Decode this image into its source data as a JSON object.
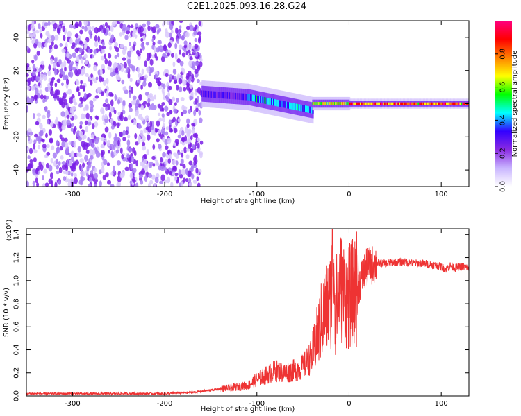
{
  "title": "C2E1.2025.093.16.28.G24",
  "chart_data": [
    {
      "type": "heatmap",
      "xlabel": "Height of straight line (km)",
      "ylabel": "Frequency (Hz)",
      "xlim": [
        -350,
        130
      ],
      "ylim": [
        -50,
        50
      ],
      "xticks": [
        -300,
        -200,
        -100,
        0,
        100
      ],
      "yticks": [
        -40,
        -20,
        0,
        20,
        40
      ],
      "grid": false,
      "colorbar": {
        "label": "Normalized spectral amplitude",
        "range": [
          0,
          1
        ],
        "ticks": [
          "0.0",
          "0.2",
          "0.4",
          "0.6",
          "0.8"
        ],
        "colors": [
          "#ffffff",
          "#c9b5ff",
          "#8a2be2",
          "#3300ff",
          "#00ffff",
          "#00ff00",
          "#ffff00",
          "#ff8000",
          "#ff0000",
          "#ff0080"
        ]
      },
      "regions": [
        {
          "x_range": [
            -350,
            -160
          ],
          "description_value": "broadband noise",
          "amplitude": 0.12,
          "freq_range": [
            -50,
            50
          ]
        },
        {
          "x_range": [
            -160,
            -110
          ],
          "amplitude": 0.3,
          "center_freq_start": 6,
          "center_freq_end": 4,
          "width_hz": 8
        },
        {
          "x_range": [
            -110,
            -40
          ],
          "amplitude": 0.45,
          "center_freq_start": 4,
          "center_freq_end": -4,
          "width_hz": 8
        },
        {
          "x_range": [
            -40,
            0
          ],
          "amplitude": 0.7,
          "center_freq_start": 0,
          "center_freq_end": 0,
          "width_hz": 4
        },
        {
          "x_range": [
            0,
            130
          ],
          "amplitude": 0.85,
          "center_freq_start": 0,
          "center_freq_end": 0,
          "width_hz": 3
        }
      ]
    },
    {
      "type": "line",
      "xlabel": "Height of straight line (km)",
      "ylabel": "SNR (10 * v/v)",
      "y_multiplier": "(x10⁴)",
      "xlim": [
        -350,
        130
      ],
      "ylim": [
        0,
        1.45
      ],
      "xticks": [
        -300,
        -200,
        -100,
        0,
        100
      ],
      "yticks": [
        "0.0",
        "0.2",
        "0.4",
        "0.6",
        "0.8",
        "1.0",
        "1.2",
        "1.4"
      ],
      "series_color": "#ee3333",
      "series": [
        {
          "x": [
            -350,
            -300,
            -250,
            -200,
            -170,
            -150,
            -130,
            -110,
            -100,
            -90,
            -80,
            -70,
            -60,
            -50,
            -40,
            -35,
            -30,
            -25,
            -20,
            -17,
            -15,
            -10,
            -5,
            0,
            5,
            10,
            15,
            20,
            30,
            40,
            50,
            60,
            70,
            80,
            90,
            100,
            105,
            110,
            115,
            120,
            125,
            130
          ],
          "y": [
            0.02,
            0.02,
            0.02,
            0.02,
            0.03,
            0.05,
            0.07,
            0.09,
            0.14,
            0.18,
            0.22,
            0.2,
            0.22,
            0.25,
            0.35,
            0.5,
            0.65,
            0.75,
            0.82,
            1.4,
            0.75,
            0.95,
            0.88,
            0.85,
            0.9,
            0.95,
            1.05,
            1.12,
            1.15,
            1.15,
            1.16,
            1.16,
            1.15,
            1.15,
            1.14,
            1.12,
            1.1,
            1.13,
            1.11,
            1.12,
            1.12,
            1.11
          ]
        }
      ]
    }
  ]
}
